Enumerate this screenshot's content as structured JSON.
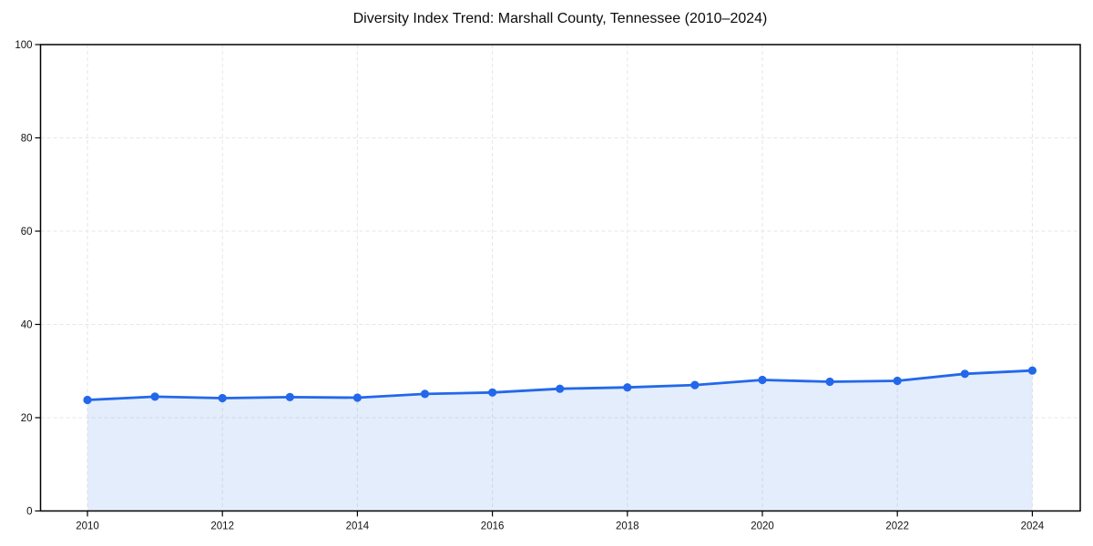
{
  "chart_data": {
    "type": "area",
    "title": "Diversity Index Trend: Marshall County, Tennessee (2010–2024)",
    "series_name": "Diversity Index",
    "x": [
      2010,
      2011,
      2012,
      2013,
      2014,
      2015,
      2016,
      2017,
      2018,
      2019,
      2020,
      2021,
      2022,
      2023,
      2024
    ],
    "values": [
      23.8,
      24.5,
      24.2,
      24.4,
      24.3,
      25.1,
      25.4,
      26.2,
      26.5,
      27.0,
      28.1,
      27.7,
      27.9,
      29.4,
      30.1
    ],
    "xlabel": "",
    "ylabel": "",
    "ylim": [
      0,
      100
    ],
    "yticks": [
      0,
      20,
      40,
      60,
      80,
      100
    ],
    "xticks": [
      2010,
      2012,
      2014,
      2016,
      2018,
      2020,
      2022,
      2024
    ],
    "grid": "dashed",
    "legend": "none",
    "marker": "circle",
    "line_color": "#2368EA",
    "fill_color": "#2368EA",
    "fill_opacity": 0.12,
    "grid_color": "#E6E6E6",
    "axis_color": "#000000",
    "tick_label_color": "#111111",
    "background_color": "#FFFFFF"
  }
}
